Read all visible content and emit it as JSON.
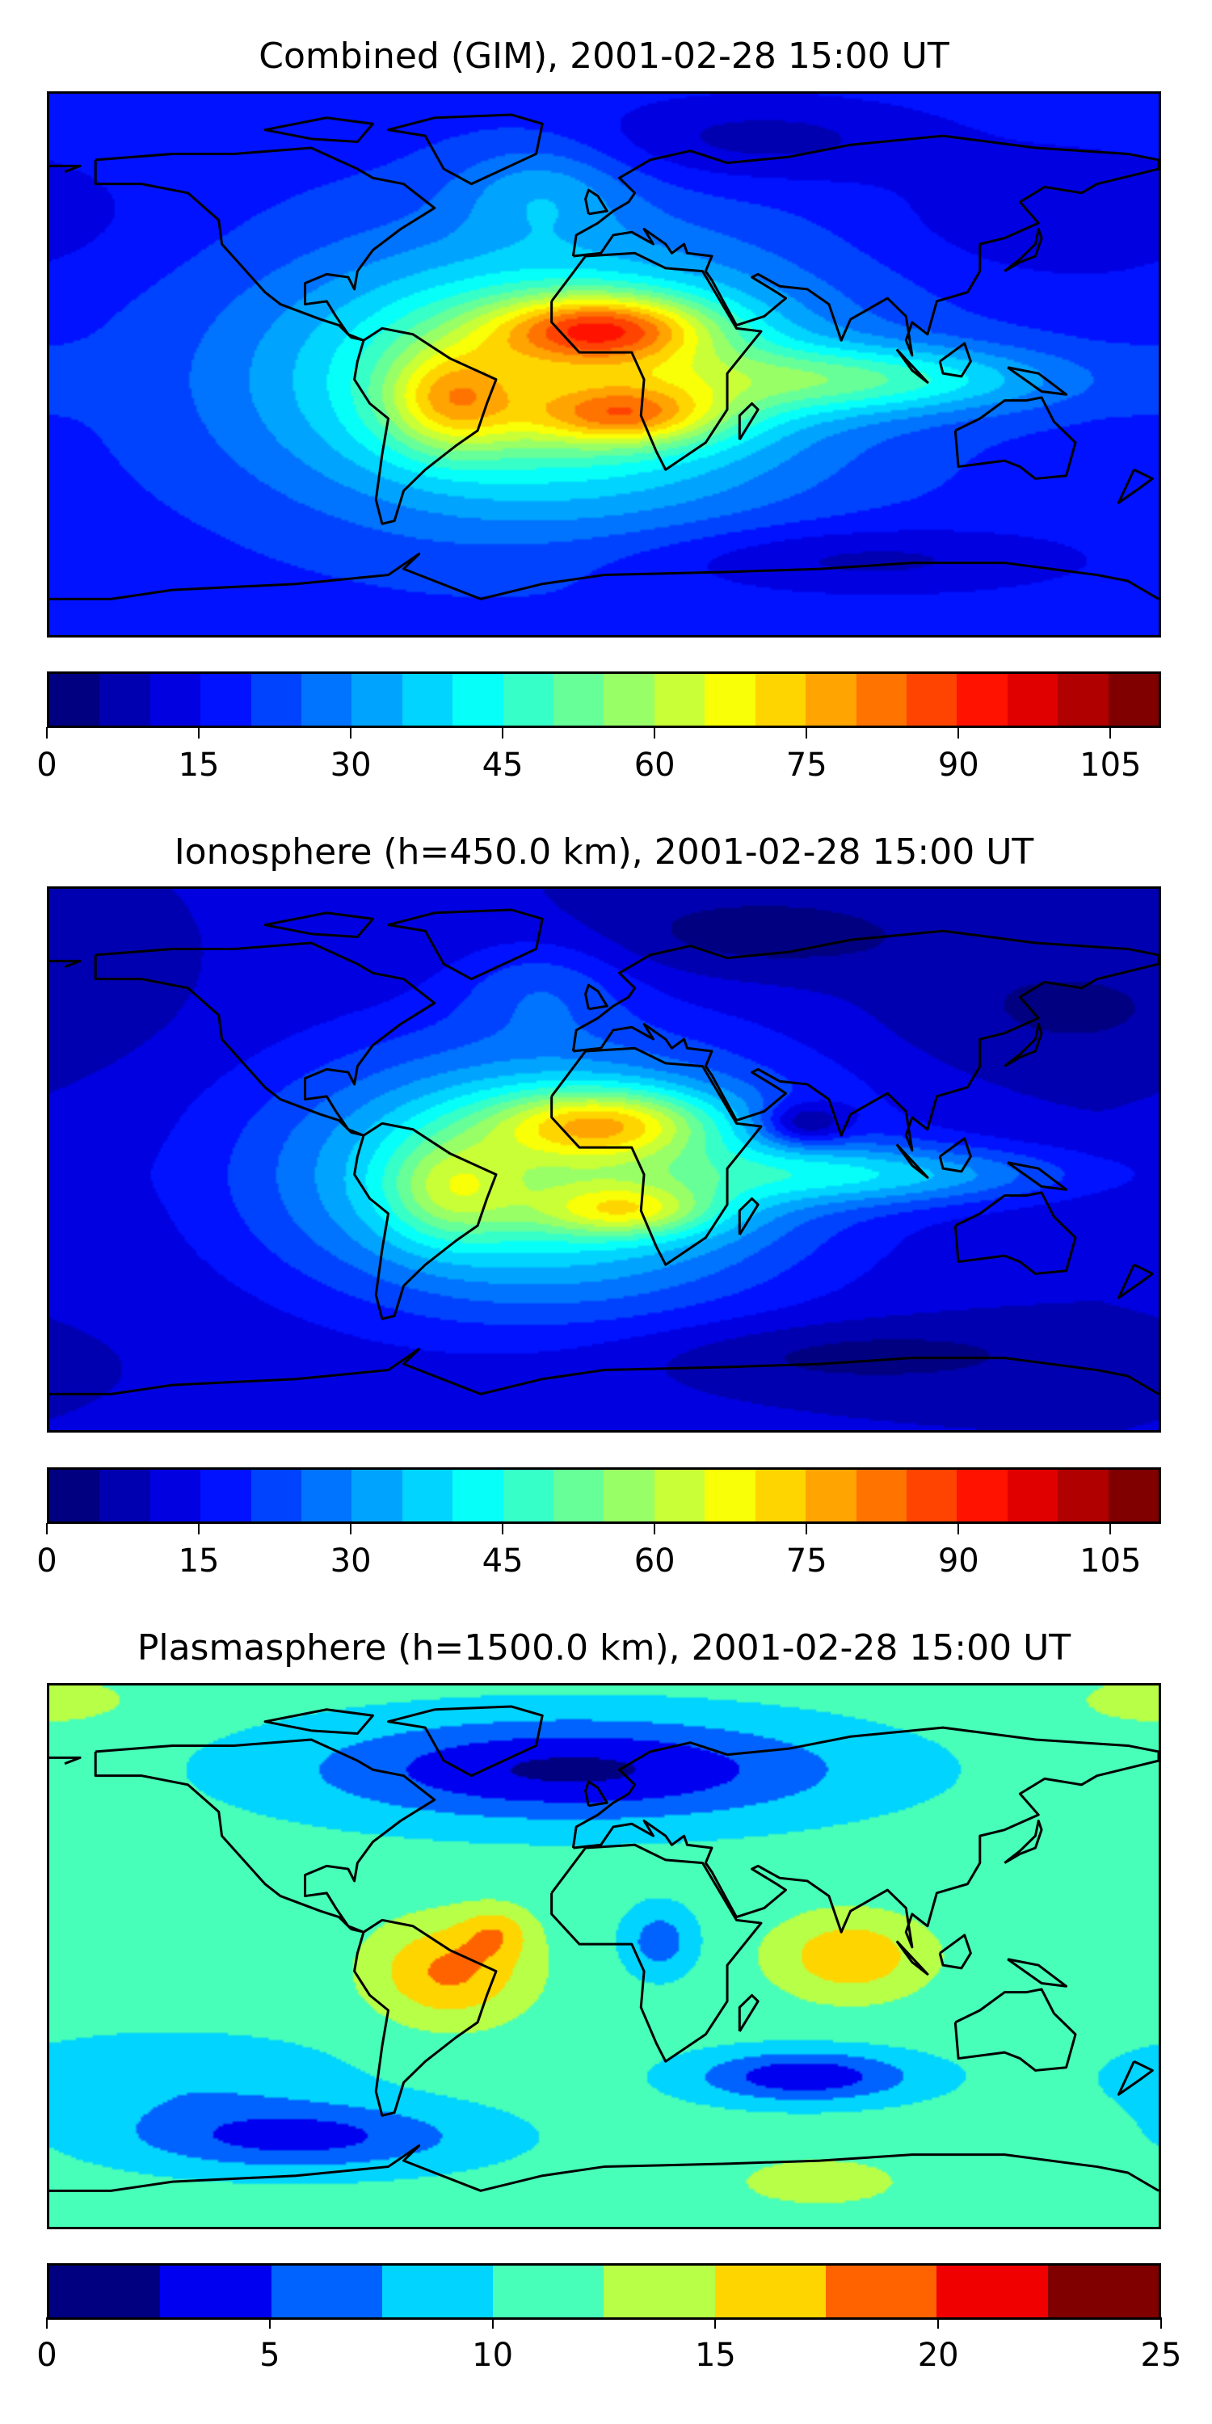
{
  "chart_data": [
    {
      "type": "heatmap",
      "title": "Combined (GIM), 2001-02-28 15:00 UT",
      "xlim": [
        -180,
        180
      ],
      "ylim": [
        -90,
        90
      ],
      "levels": {
        "min": 0,
        "max": 110,
        "step": 5
      },
      "colormap": "jet",
      "colorbar_ticks": [
        "0",
        "15",
        "30",
        "45",
        "60",
        "75",
        "90",
        "105"
      ],
      "colorbar_tick_values": [
        0,
        15,
        30,
        45,
        60,
        75,
        90,
        105
      ],
      "field": {
        "base": 18,
        "components": [
          {
            "lon": -20,
            "lat": -5,
            "amp": 42,
            "slon": 60,
            "slat": 30
          },
          {
            "lon": 0,
            "lat": 12,
            "amp": 40,
            "slon": 25,
            "slat": 8
          },
          {
            "lon": 8,
            "lat": -17,
            "amp": 30,
            "slon": 22,
            "slat": 7
          },
          {
            "lon": -50,
            "lat": -12,
            "amp": 25,
            "slon": 15,
            "slat": 12
          },
          {
            "lon": 85,
            "lat": -5,
            "amp": 25,
            "slon": 45,
            "slat": 8
          },
          {
            "lon": -20,
            "lat": 58,
            "amp": 12,
            "slon": 20,
            "slat": 12
          },
          {
            "lon": 50,
            "lat": 75,
            "amp": -10,
            "slon": 40,
            "slat": 10
          },
          {
            "lon": 150,
            "lat": 50,
            "amp": -8,
            "slon": 40,
            "slat": 15
          },
          {
            "lon": 80,
            "lat": -65,
            "amp": -10,
            "slon": 50,
            "slat": 8
          }
        ]
      }
    },
    {
      "type": "heatmap",
      "title": "Ionosphere  (h=450.0 km), 2001-02-28 15:00 UT",
      "xlim": [
        -180,
        180
      ],
      "ylim": [
        -90,
        90
      ],
      "levels": {
        "min": 0,
        "max": 110,
        "step": 5
      },
      "colormap": "jet",
      "colorbar_ticks": [
        "0",
        "15",
        "30",
        "45",
        "60",
        "75",
        "90",
        "105"
      ],
      "colorbar_tick_values": [
        0,
        15,
        30,
        45,
        60,
        75,
        90,
        105
      ],
      "field": {
        "base": 10,
        "components": [
          {
            "lon": -20,
            "lat": -5,
            "amp": 42,
            "slon": 60,
            "slat": 30
          },
          {
            "lon": 0,
            "lat": 12,
            "amp": 33,
            "slon": 25,
            "slat": 8
          },
          {
            "lon": 8,
            "lat": -17,
            "amp": 25,
            "slon": 20,
            "slat": 6
          },
          {
            "lon": -50,
            "lat": -10,
            "amp": 18,
            "slon": 15,
            "slat": 12
          },
          {
            "lon": 90,
            "lat": -5,
            "amp": 22,
            "slon": 45,
            "slat": 7
          },
          {
            "lon": 65,
            "lat": 12,
            "amp": -18,
            "slon": 10,
            "slat": 5
          },
          {
            "lon": -20,
            "lat": 58,
            "amp": 10,
            "slon": 20,
            "slat": 12
          },
          {
            "lon": 50,
            "lat": 75,
            "amp": -8,
            "slon": 40,
            "slat": 10
          },
          {
            "lon": 150,
            "lat": 50,
            "amp": -6,
            "slon": 40,
            "slat": 15
          },
          {
            "lon": 80,
            "lat": -65,
            "amp": -8,
            "slon": 50,
            "slat": 8
          }
        ]
      }
    },
    {
      "type": "heatmap",
      "title": "Plasmasphere (h=1500.0 km), 2001-02-28 15:00 UT",
      "xlim": [
        -180,
        180
      ],
      "ylim": [
        -90,
        90
      ],
      "levels": {
        "min": 0,
        "max": 25,
        "step": 2.5
      },
      "colormap": "jet",
      "colorbar_ticks": [
        "0",
        "5",
        "10",
        "15",
        "20",
        "25"
      ],
      "colorbar_tick_values": [
        0,
        5,
        10,
        15,
        20,
        25
      ],
      "field": {
        "base": 11,
        "components": [
          {
            "lon": -10,
            "lat": 62,
            "amp": -9,
            "slon": 60,
            "slat": 12
          },
          {
            "lon": -50,
            "lat": -5,
            "amp": 7,
            "slon": 18,
            "slat": 12
          },
          {
            "lon": -35,
            "lat": 8,
            "amp": 4,
            "slon": 8,
            "slat": 6
          },
          {
            "lon": 80,
            "lat": 0,
            "amp": 6,
            "slon": 18,
            "slat": 10
          },
          {
            "lon": 18,
            "lat": 5,
            "amp": -5,
            "slon": 8,
            "slat": 8
          },
          {
            "lon": 65,
            "lat": -40,
            "amp": -8,
            "slon": 25,
            "slat": 6
          },
          {
            "lon": -100,
            "lat": -60,
            "amp": -7,
            "slon": 40,
            "slat": 8
          },
          {
            "lon": -140,
            "lat": -40,
            "amp": -3,
            "slon": 40,
            "slat": 10
          },
          {
            "lon": 70,
            "lat": -75,
            "amp": 3,
            "slon": 20,
            "slat": 6
          },
          {
            "lon": 180,
            "lat": 85,
            "amp": 3,
            "slon": 20,
            "slat": 6
          }
        ]
      }
    }
  ]
}
